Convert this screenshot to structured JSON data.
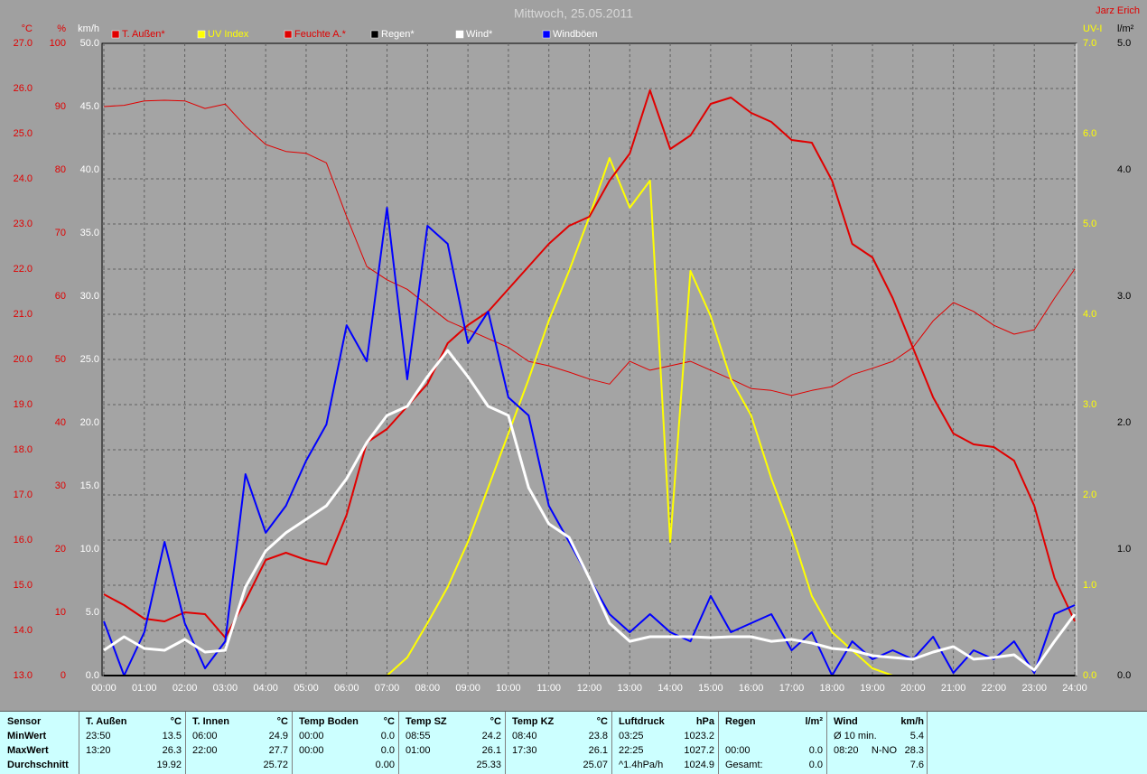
{
  "chart_data": {
    "type": "line",
    "title": "Mittwoch, 25.05.2011",
    "author": "Jarz Erich",
    "grid": true,
    "xlim": [
      0,
      24
    ],
    "xticks": [
      {
        "value": 0,
        "label": "00:00"
      },
      {
        "value": 1,
        "label": "01:00"
      },
      {
        "value": 2,
        "label": "02:00"
      },
      {
        "value": 3,
        "label": "03:00"
      },
      {
        "value": 4,
        "label": "04:00"
      },
      {
        "value": 5,
        "label": "05:00"
      },
      {
        "value": 6,
        "label": "06:00"
      },
      {
        "value": 7,
        "label": "07:00"
      },
      {
        "value": 8,
        "label": "08:00"
      },
      {
        "value": 9,
        "label": "09:00"
      },
      {
        "value": 10,
        "label": "10:00"
      },
      {
        "value": 11,
        "label": "11:00"
      },
      {
        "value": 12,
        "label": "12:00"
      },
      {
        "value": 13,
        "label": "13:00"
      },
      {
        "value": 14,
        "label": "14:00"
      },
      {
        "value": 15,
        "label": "15:00"
      },
      {
        "value": 16,
        "label": "16:00"
      },
      {
        "value": 17,
        "label": "17:00"
      },
      {
        "value": 18,
        "label": "18:00"
      },
      {
        "value": 19,
        "label": "19:00"
      },
      {
        "value": 20,
        "label": "20:00"
      },
      {
        "value": 21,
        "label": "21:00"
      },
      {
        "value": 22,
        "label": "22:00"
      },
      {
        "value": 23,
        "label": "23:00"
      },
      {
        "value": 24,
        "label": "24:00"
      }
    ],
    "y_axes": [
      {
        "label": "°C",
        "color": "#e00000",
        "side": "left",
        "ylim": [
          13,
          27
        ],
        "yticks": [
          {
            "value": 13,
            "label": "13.0"
          },
          {
            "value": 14,
            "label": "14.0"
          },
          {
            "value": 15,
            "label": "15.0"
          },
          {
            "value": 16,
            "label": "16.0"
          },
          {
            "value": 17,
            "label": "17.0"
          },
          {
            "value": 18,
            "label": "18.0"
          },
          {
            "value": 19,
            "label": "19.0"
          },
          {
            "value": 20,
            "label": "20.0"
          },
          {
            "value": 21,
            "label": "21.0"
          },
          {
            "value": 22,
            "label": "22.0"
          },
          {
            "value": 23,
            "label": "23.0"
          },
          {
            "value": 24,
            "label": "24.0"
          },
          {
            "value": 25,
            "label": "25.0"
          },
          {
            "value": 26,
            "label": "26.0"
          },
          {
            "value": 27,
            "label": "27.0"
          }
        ]
      },
      {
        "label": "%",
        "color": "#e00000",
        "side": "left",
        "ylim": [
          0,
          100
        ],
        "yticks": [
          0,
          10,
          20,
          30,
          40,
          50,
          60,
          70,
          80,
          90,
          100
        ]
      },
      {
        "label": "km/h",
        "color": "#ffffff",
        "side": "left",
        "ylim": [
          0,
          50
        ],
        "yticks": [
          {
            "value": 0,
            "label": "0.0"
          },
          {
            "value": 5,
            "label": "5.0"
          },
          {
            "value": 10,
            "label": "10.0"
          },
          {
            "value": 15,
            "label": "15.0"
          },
          {
            "value": 20,
            "label": "20.0"
          },
          {
            "value": 25,
            "label": "25.0"
          },
          {
            "value": 30,
            "label": "30.0"
          },
          {
            "value": 35,
            "label": "35.0"
          },
          {
            "value": 40,
            "label": "40.0"
          },
          {
            "value": 45,
            "label": "45.0"
          },
          {
            "value": 50,
            "label": "50.0"
          }
        ]
      },
      {
        "label": "UV-I",
        "color": "#ffff00",
        "side": "right",
        "ylim": [
          0,
          7
        ],
        "yticks": [
          {
            "value": 0,
            "label": "0.0"
          },
          {
            "value": 1,
            "label": "1.0"
          },
          {
            "value": 2,
            "label": "2.0"
          },
          {
            "value": 3,
            "label": "3.0"
          },
          {
            "value": 4,
            "label": "4.0"
          },
          {
            "value": 5,
            "label": "5.0"
          },
          {
            "value": 6,
            "label": "6.0"
          },
          {
            "value": 7,
            "label": "7.0"
          }
        ]
      },
      {
        "label": "l/m²",
        "color": "#000000",
        "side": "right",
        "ylim": [
          0,
          5
        ],
        "yticks": [
          {
            "value": 0,
            "label": "0.0"
          },
          {
            "value": 1,
            "label": "1.0"
          },
          {
            "value": 2,
            "label": "2.0"
          },
          {
            "value": 3,
            "label": "3.0"
          },
          {
            "value": 4,
            "label": "4.0"
          },
          {
            "value": 5,
            "label": "5.0"
          }
        ]
      }
    ],
    "x": [
      0,
      0.5,
      1,
      1.5,
      2,
      2.5,
      3,
      3.5,
      4,
      4.5,
      5,
      5.5,
      6,
      6.5,
      7,
      7.5,
      8,
      8.5,
      9,
      9.5,
      10,
      10.5,
      11,
      11.5,
      12,
      12.5,
      13,
      13.5,
      14,
      14.5,
      15,
      15.5,
      16,
      16.5,
      17,
      17.5,
      18,
      18.5,
      19,
      19.5,
      20,
      20.5,
      21,
      21.5,
      22,
      22.5,
      23,
      23.5,
      24
    ],
    "series": [
      {
        "name": "Feuchte A.*",
        "color": "#e00000",
        "text_color": "#e00000",
        "width": 1,
        "axis": 1,
        "values": [
          90,
          90.2,
          90.9,
          91,
          90.9,
          89.7,
          90.4,
          86.9,
          84,
          82.9,
          82.6,
          81.1,
          72.6,
          64.7,
          62.6,
          61.1,
          58.6,
          56.1,
          54.7,
          53.3,
          51.9,
          49.7,
          49,
          48,
          46.9,
          46.1,
          49.7,
          48.3,
          49,
          49.7,
          48.3,
          46.9,
          45.4,
          45.1,
          44.3,
          45.1,
          45.7,
          47.6,
          48.6,
          49.7,
          51.9,
          56.1,
          59,
          57.6,
          55.4,
          54,
          54.7,
          59.7,
          64.3
        ]
      },
      {
        "name": "UV Index",
        "color": "#ffff00",
        "text_color": "#ffff00",
        "width": 2,
        "axis": 3,
        "values": [
          0,
          0,
          0,
          0,
          0,
          0,
          0,
          0,
          0,
          0,
          0,
          0,
          0,
          0,
          0,
          0.2,
          0.58,
          0.98,
          1.48,
          2.08,
          2.68,
          3.28,
          3.93,
          4.48,
          5.08,
          5.73,
          5.18,
          5.48,
          1.48,
          4.48,
          3.98,
          3.28,
          2.88,
          2.18,
          1.58,
          0.88,
          0.48,
          0.28,
          0.08,
          0,
          0,
          0,
          0,
          0,
          0,
          0,
          0,
          0,
          0
        ]
      },
      {
        "name": "T. Außen*",
        "color": "#e00000",
        "text_color": "#e00000",
        "width": 2,
        "axis": 0,
        "values": [
          14.8,
          14.56,
          14.26,
          14.2,
          14.4,
          14.36,
          13.84,
          14.66,
          15.56,
          15.72,
          15.56,
          15.46,
          16.56,
          18.16,
          18.46,
          18.96,
          19.46,
          20.36,
          20.76,
          21.06,
          21.56,
          22.06,
          22.56,
          22.96,
          23.16,
          23.96,
          24.56,
          25.96,
          24.66,
          24.96,
          25.66,
          25.8,
          25.46,
          25.26,
          24.86,
          24.8,
          23.96,
          22.56,
          22.26,
          21.36,
          20.26,
          19.16,
          18.36,
          18.12,
          18.06,
          17.76,
          16.76,
          15.16,
          14.2
        ]
      },
      {
        "name": "Windböen",
        "color": "#0000ff",
        "text_color": "#ffffff",
        "width": 2,
        "axis": 2,
        "values": [
          4.29,
          0,
          3.43,
          10.57,
          4.14,
          0.57,
          2.71,
          15.93,
          11.29,
          13.43,
          17,
          19.86,
          27.71,
          24.86,
          37,
          23.43,
          35.57,
          34.14,
          26.29,
          28.79,
          22,
          20.57,
          13.43,
          10.57,
          7.71,
          4.86,
          3.43,
          4.86,
          3.43,
          2.71,
          6.29,
          3.43,
          4.14,
          4.86,
          2,
          3.43,
          0,
          2.71,
          1.29,
          2,
          1.29,
          3.07,
          0.21,
          2,
          1.29,
          2.71,
          0.21,
          4.86,
          5.57
        ]
      },
      {
        "name": "Wind*",
        "color": "#ffffff",
        "text_color": "#ffffff",
        "width": 3,
        "axis": 2,
        "values": [
          2,
          3.07,
          2.14,
          2,
          2.86,
          1.86,
          2,
          7,
          9.86,
          11.29,
          12.36,
          13.43,
          15.57,
          18.43,
          20.57,
          21.29,
          23.64,
          25.71,
          23.64,
          21.29,
          20.57,
          14.86,
          12,
          10.93,
          7.71,
          4.14,
          2.71,
          3.07,
          3.07,
          3.07,
          3,
          3.07,
          3.07,
          2.71,
          2.86,
          2.57,
          2.14,
          2,
          1.57,
          1.43,
          1.29,
          1.86,
          2.29,
          1.29,
          1.43,
          1.64,
          0.43,
          2.71,
          4.86
        ]
      },
      {
        "name": "Regen*",
        "color": "#000000",
        "text_color": "#ffffff",
        "width": 2,
        "axis": 4,
        "values": [
          0,
          0,
          0,
          0,
          0,
          0,
          0,
          0,
          0,
          0,
          0,
          0,
          0,
          0,
          0,
          0,
          0,
          0,
          0,
          0,
          0,
          0,
          0,
          0,
          0,
          0,
          0,
          0,
          0,
          0,
          0,
          0,
          0,
          0,
          0,
          0,
          0,
          0,
          0,
          0,
          0,
          0,
          0,
          0,
          0,
          0,
          0,
          0,
          0
        ]
      }
    ],
    "legend_order": [
      2,
      1,
      0,
      5,
      4,
      3
    ]
  },
  "table": {
    "header_label": "Sensor",
    "row_labels": [
      "MinWert",
      "MaxWert",
      "Durchschnitt"
    ],
    "columns": [
      {
        "name": "T. Außen",
        "unit": "°C",
        "rows": [
          [
            "23:50",
            "13.5"
          ],
          [
            "13:20",
            "26.3"
          ],
          [
            null,
            "19.92"
          ]
        ]
      },
      {
        "name": "T. Innen",
        "unit": "°C",
        "rows": [
          [
            "06:00",
            "24.9"
          ],
          [
            "22:00",
            "27.7"
          ],
          [
            null,
            "25.72"
          ]
        ]
      },
      {
        "name": "Temp Boden",
        "unit": "°C",
        "rows": [
          [
            "00:00",
            "0.0"
          ],
          [
            "00:00",
            "0.0"
          ],
          [
            null,
            "0.00"
          ]
        ]
      },
      {
        "name": "Temp SZ",
        "unit": "°C",
        "rows": [
          [
            "08:55",
            "24.2"
          ],
          [
            "01:00",
            "26.1"
          ],
          [
            null,
            "25.33"
          ]
        ]
      },
      {
        "name": "Temp KZ",
        "unit": "°C",
        "rows": [
          [
            "08:40",
            "23.8"
          ],
          [
            "17:30",
            "26.1"
          ],
          [
            null,
            "25.07"
          ]
        ]
      },
      {
        "name": "Luftdruck",
        "unit": "hPa",
        "rows": [
          [
            "03:25",
            "1023.2"
          ],
          [
            "22:25",
            "1027.2"
          ],
          [
            "^1.4hPa/h",
            "1024.9"
          ]
        ]
      },
      {
        "name": "Regen",
        "unit": "l/m²",
        "rows": [
          [
            null,
            null
          ],
          [
            "00:00",
            "0.0"
          ],
          [
            "Gesamt:",
            "0.0"
          ]
        ]
      },
      {
        "name": "Wind",
        "unit": "km/h",
        "rows": [
          [
            "Ø 10 min.",
            "5.4"
          ],
          [
            "08:20",
            "N-NO",
            "28.3"
          ],
          [
            null,
            "7.6"
          ]
        ]
      }
    ]
  }
}
